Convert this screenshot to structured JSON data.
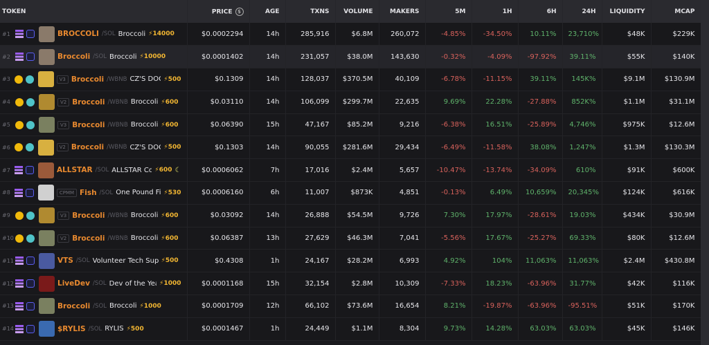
{
  "header": {
    "token": "TOKEN",
    "price": "PRICE",
    "price_icon": "$",
    "age": "AGE",
    "txns": "TXNS",
    "volume": "VOLUME",
    "makers": "MAKERS",
    "m5": "5M",
    "h1": "1H",
    "h6": "6H",
    "h24": "24H",
    "liquidity": "LIQUIDITY",
    "mcap": "MCAP"
  },
  "colors": {
    "positive": "#5fb36b",
    "negative": "#d9625c",
    "symbol": "#e8892f",
    "boost": "#f2b632"
  },
  "rows": [
    {
      "rank": "#1",
      "chain": "solana",
      "dex": "raydium",
      "version": "",
      "symbol": "BROCCOLI",
      "quote": "SOL",
      "name": "Broccoli",
      "boost": "14000",
      "price": "$0.0002294",
      "age": "14h",
      "txns": "285,916",
      "volume": "$6.8M",
      "makers": "260,072",
      "m5": "-4.85%",
      "h1": "-34.50%",
      "h6": "10.11%",
      "h24": "23,710%",
      "liquidity": "$48K",
      "mcap": "$229K",
      "avatar": "#8a7a6a"
    },
    {
      "rank": "#2",
      "chain": "solana",
      "dex": "raydium",
      "version": "",
      "symbol": "Broccoli",
      "quote": "SOL",
      "name": "Broccoli",
      "boost": "10000",
      "price": "$0.0001402",
      "age": "14h",
      "txns": "231,057",
      "volume": "$38.0M",
      "makers": "143,630",
      "m5": "-0.32%",
      "h1": "-4.09%",
      "h6": "-97.92%",
      "h24": "39.11%",
      "liquidity": "$55K",
      "mcap": "$140K",
      "avatar": "#8a7a6a",
      "highlight": true
    },
    {
      "rank": "#3",
      "chain": "bsc",
      "dex": "pancakeswap",
      "version": "V3",
      "symbol": "Broccoli",
      "quote": "WBNB",
      "name": "CZ'S DOG",
      "boost": "500",
      "price": "$0.1309",
      "age": "14h",
      "txns": "128,037",
      "volume": "$370.5M",
      "makers": "40,109",
      "m5": "-6.78%",
      "h1": "-11.15%",
      "h6": "39.11%",
      "h24": "145K%",
      "liquidity": "$9.1M",
      "mcap": "$130.9M",
      "avatar": "#d8b040"
    },
    {
      "rank": "#4",
      "chain": "bsc",
      "dex": "pancakeswap",
      "version": "V2",
      "symbol": "Broccoli",
      "quote": "WBNB",
      "name": "Broccoli",
      "boost": "600",
      "price": "$0.03110",
      "age": "14h",
      "txns": "106,099",
      "volume": "$299.7M",
      "makers": "22,635",
      "m5": "9.69%",
      "h1": "22.28%",
      "h6": "-27.88%",
      "h24": "852K%",
      "liquidity": "$1.1M",
      "mcap": "$31.1M",
      "avatar": "#b08a30"
    },
    {
      "rank": "#5",
      "chain": "bsc",
      "dex": "pancakeswap",
      "version": "V3",
      "symbol": "Broccoli",
      "quote": "WBNB",
      "name": "Broccoli",
      "boost": "600",
      "price": "$0.06390",
      "age": "15h",
      "txns": "47,167",
      "volume": "$85.2M",
      "makers": "9,216",
      "m5": "-6.38%",
      "h1": "16.51%",
      "h6": "-25.89%",
      "h24": "4,746%",
      "liquidity": "$975K",
      "mcap": "$12.6M",
      "avatar": "#7a8060"
    },
    {
      "rank": "#6",
      "chain": "bsc",
      "dex": "pancakeswap",
      "version": "V2",
      "symbol": "Broccoli",
      "quote": "WBNB",
      "name": "CZ'S DOG",
      "boost": "500",
      "price": "$0.1303",
      "age": "14h",
      "txns": "90,055",
      "volume": "$281.6M",
      "makers": "29,434",
      "m5": "-6.49%",
      "h1": "-11.58%",
      "h6": "38.08%",
      "h24": "1,247%",
      "liquidity": "$1.3M",
      "mcap": "$130.3M",
      "avatar": "#d8b040"
    },
    {
      "rank": "#7",
      "chain": "solana",
      "dex": "raydium",
      "version": "",
      "symbol": "ALLSTAR",
      "quote": "SOL",
      "name": "ALLSTAR Coi",
      "boost": "600",
      "moon": true,
      "price": "$0.0006062",
      "age": "7h",
      "txns": "17,016",
      "volume": "$2.4M",
      "makers": "5,657",
      "m5": "-10.47%",
      "h1": "-13.74%",
      "h6": "-34.09%",
      "h24": "610%",
      "liquidity": "$91K",
      "mcap": "$600K",
      "avatar": "#9a5a3a"
    },
    {
      "rank": "#8",
      "chain": "solana",
      "dex": "raydium",
      "version": "CPMM",
      "symbol": "Fish",
      "quote": "SOL",
      "name": "One Pound Fis",
      "boost": "530",
      "price": "$0.0006160",
      "age": "6h",
      "txns": "11,007",
      "volume": "$873K",
      "makers": "4,851",
      "m5": "-0.13%",
      "h1": "6.49%",
      "h6": "10,659%",
      "h24": "20,345%",
      "liquidity": "$124K",
      "mcap": "$616K",
      "avatar": "#d0d0d0"
    },
    {
      "rank": "#9",
      "chain": "bsc",
      "dex": "pancakeswap",
      "version": "V3",
      "symbol": "Broccoli",
      "quote": "WBNB",
      "name": "Broccoli",
      "boost": "600",
      "price": "$0.03092",
      "age": "14h",
      "txns": "26,888",
      "volume": "$54.5M",
      "makers": "9,726",
      "m5": "7.30%",
      "h1": "17.97%",
      "h6": "-28.61%",
      "h24": "19.03%",
      "liquidity": "$434K",
      "mcap": "$30.9M",
      "avatar": "#b08a30"
    },
    {
      "rank": "#10",
      "chain": "bsc",
      "dex": "pancakeswap",
      "version": "V2",
      "symbol": "Broccoli",
      "quote": "WBNB",
      "name": "Broccoli",
      "boost": "600",
      "price": "$0.06387",
      "age": "13h",
      "txns": "27,629",
      "volume": "$46.3M",
      "makers": "7,041",
      "m5": "-5.56%",
      "h1": "17.67%",
      "h6": "-25.27%",
      "h24": "69.33%",
      "liquidity": "$80K",
      "mcap": "$12.6M",
      "avatar": "#7a8060"
    },
    {
      "rank": "#11",
      "chain": "solana",
      "dex": "raydium",
      "version": "",
      "symbol": "VTS",
      "quote": "SOL",
      "name": "Volunteer Tech Supp",
      "boost": "500",
      "price": "$0.4308",
      "age": "1h",
      "txns": "24,167",
      "volume": "$28.2M",
      "makers": "6,993",
      "m5": "4.92%",
      "h1": "104%",
      "h6": "11,063%",
      "h24": "11,063%",
      "liquidity": "$2.4M",
      "mcap": "$430.8M",
      "avatar": "#4a5aa0"
    },
    {
      "rank": "#12",
      "chain": "solana",
      "dex": "raydium",
      "version": "",
      "symbol": "LiveDev",
      "quote": "SOL",
      "name": "Dev of the Year",
      "boost": "1000",
      "price": "$0.0001168",
      "age": "15h",
      "txns": "32,154",
      "volume": "$2.8M",
      "makers": "10,309",
      "m5": "-7.33%",
      "h1": "18.23%",
      "h6": "-63.96%",
      "h24": "31.77%",
      "liquidity": "$42K",
      "mcap": "$116K",
      "avatar": "#7a1a1a"
    },
    {
      "rank": "#13",
      "chain": "solana",
      "dex": "raydium",
      "version": "",
      "symbol": "Broccoli",
      "quote": "SOL",
      "name": "Broccoli",
      "boost": "1000",
      "price": "$0.0001709",
      "age": "12h",
      "txns": "66,102",
      "volume": "$73.6M",
      "makers": "16,654",
      "m5": "8.21%",
      "h1": "-19.87%",
      "h6": "-63.96%",
      "h24": "-95.51%",
      "liquidity": "$51K",
      "mcap": "$170K",
      "avatar": "#7a8060"
    },
    {
      "rank": "#14",
      "chain": "solana",
      "dex": "raydium",
      "version": "",
      "symbol": "$RYLIS",
      "quote": "SOL",
      "name": "RYLIS",
      "boost": "500",
      "price": "$0.0001467",
      "age": "1h",
      "txns": "24,449",
      "volume": "$1.1M",
      "makers": "8,304",
      "m5": "9.73%",
      "h1": "14.28%",
      "h6": "63.03%",
      "h24": "63.03%",
      "liquidity": "$45K",
      "mcap": "$146K",
      "avatar": "#3a6ab0"
    }
  ]
}
